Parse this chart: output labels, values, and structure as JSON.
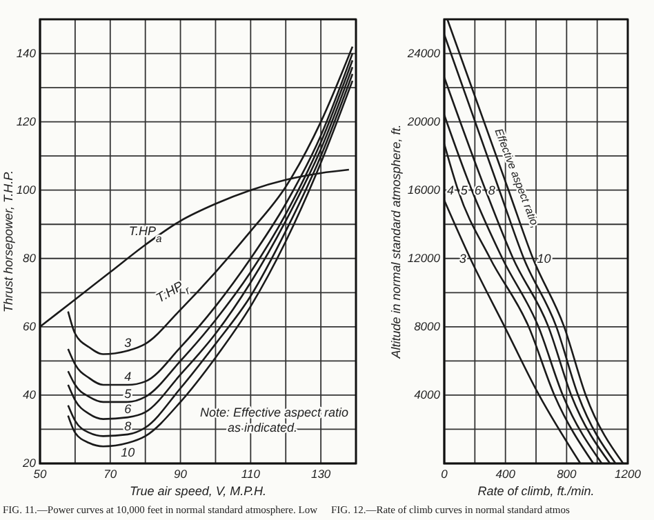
{
  "chart_data": [
    {
      "type": "line",
      "xlabel": "True air speed, V, M.P.H.",
      "ylabel": "Thrust horsepower, T.H.P.",
      "xlim": [
        50,
        140
      ],
      "ylim": [
        20,
        150
      ],
      "xticks": [
        50,
        {
          "value": 60,
          "label": null
        },
        70,
        {
          "value": 80,
          "label": null
        },
        90,
        {
          "value": 100,
          "label": null
        },
        110,
        {
          "value": 120,
          "label": null
        },
        130,
        {
          "value": 140,
          "label": null
        }
      ],
      "yticks": [
        20,
        {
          "value": 30,
          "label": null
        },
        40,
        {
          "value": 50,
          "label": null
        },
        60,
        {
          "value": 70,
          "label": null
        },
        80,
        {
          "value": 90,
          "label": null
        },
        100,
        {
          "value": 110,
          "label": null
        },
        120,
        {
          "value": 130,
          "label": null
        },
        140,
        {
          "value": 150,
          "label": null
        }
      ],
      "grid": true,
      "line_style": "solid",
      "series": [
        {
          "name": "T.HP$_{a}$",
          "color": "#1a1a1a",
          "x": [
            50,
            60,
            70,
            80,
            90,
            100,
            110,
            120,
            130,
            138
          ],
          "values": [
            60,
            68,
            76,
            84,
            91,
            96,
            100,
            103,
            105,
            106
          ]
        },
        {
          "name": "3",
          "color": "#1a1a1a",
          "x": [
            58,
            60,
            64,
            68,
            75,
            80,
            90,
            100,
            110,
            120,
            130,
            139
          ],
          "values": [
            64.5,
            58,
            54,
            52,
            53,
            55,
            65,
            76,
            88,
            101,
            120,
            142
          ]
        },
        {
          "name": "4",
          "color": "#1a1a1a",
          "x": [
            58,
            60,
            64,
            68,
            75,
            80,
            90,
            100,
            110,
            120,
            130,
            139
          ],
          "values": [
            53.5,
            49,
            45,
            43,
            43,
            44,
            54,
            66,
            80,
            96,
            116,
            140
          ]
        },
        {
          "name": "5",
          "color": "#1a1a1a",
          "x": [
            58,
            60,
            64,
            68,
            75,
            80,
            90,
            100,
            110,
            120,
            130,
            139
          ],
          "values": [
            47,
            43,
            39.5,
            38,
            38,
            39.5,
            50,
            62,
            76,
            93,
            114,
            138
          ]
        },
        {
          "name": "6",
          "color": "#1a1a1a",
          "x": [
            58,
            60,
            64,
            68,
            75,
            80,
            90,
            100,
            110,
            120,
            130,
            139
          ],
          "values": [
            43,
            38.5,
            34.5,
            33,
            33.5,
            35,
            46,
            58,
            73,
            91,
            112,
            136
          ]
        },
        {
          "name": "8",
          "color": "#1a1a1a",
          "x": [
            58,
            60,
            64,
            68,
            75,
            80,
            90,
            100,
            110,
            120,
            130,
            139
          ],
          "values": [
            37,
            32.5,
            29,
            28,
            28.5,
            30.5,
            42,
            55,
            69,
            88,
            110,
            134
          ]
        },
        {
          "name": "10",
          "color": "#1a1a1a",
          "x": [
            58,
            60,
            64,
            68,
            75,
            80,
            90,
            100,
            110,
            120,
            130,
            139
          ],
          "values": [
            34,
            29,
            26,
            25,
            26,
            28,
            38,
            51,
            66,
            85,
            108,
            132
          ]
        }
      ],
      "annotations": [
        "T.HP$_{r}$",
        "Note: Effective aspect ratio as indicated.",
        "FIG. 11.—Power curves at 10,000 feet in normal standard atmosphere. Low"
      ]
    },
    {
      "type": "line",
      "xlabel": "Rate of climb, ft./min.",
      "ylabel": "Altitude in normal standard atmosphere, ft.",
      "xlim": [
        0,
        1200
      ],
      "ylim": [
        0,
        26000
      ],
      "xticks": [
        0,
        {
          "value": 200,
          "label": null
        },
        400,
        {
          "value": 600,
          "label": null
        },
        800,
        {
          "value": 1000,
          "label": null
        },
        1200
      ],
      "yticks": [
        {
          "value": 0,
          "label": null
        },
        {
          "value": 2000,
          "label": null
        },
        4000,
        {
          "value": 6000,
          "label": null
        },
        8000,
        {
          "value": 10000,
          "label": null
        },
        12000,
        {
          "value": 14000,
          "label": null
        },
        16000,
        {
          "value": 18000,
          "label": null
        },
        20000,
        {
          "value": 22000,
          "label": null
        },
        24000,
        {
          "value": 26000,
          "label": null
        }
      ],
      "grid": true,
      "line_style": "solid",
      "series": [
        {
          "name": "3",
          "color": "#1a1a1a",
          "x": [
            0,
            170,
            395,
            620,
            890
          ],
          "values": [
            15400,
            12000,
            8000,
            4000,
            0
          ]
        },
        {
          "name": "4",
          "color": "#1a1a1a",
          "x": [
            0,
            90,
            300,
            552,
            720,
            975
          ],
          "values": [
            18700,
            16000,
            12000,
            8000,
            4000,
            0
          ]
        },
        {
          "name": "5",
          "color": "#1a1a1a",
          "x": [
            0,
            180,
            380,
            616,
            775,
            1030
          ],
          "values": [
            20400,
            16000,
            12000,
            8000,
            4000,
            0
          ]
        },
        {
          "name": "6",
          "color": "#1a1a1a",
          "x": [
            0,
            270,
            450,
            681,
            830,
            1084
          ],
          "values": [
            22600,
            16000,
            12000,
            8000,
            4000,
            0
          ]
        },
        {
          "name": "8",
          "color": "#1a1a1a",
          "x": [
            0,
            360,
            520,
            733,
            875,
            1120
          ],
          "values": [
            25100,
            16000,
            12000,
            8000,
            4000,
            0
          ]
        },
        {
          "name": "10",
          "color": "#1a1a1a",
          "x": [
            20,
            420,
            580,
            784,
            925,
            1170
          ],
          "values": [
            26000,
            16000,
            12000,
            8000,
            4000,
            0
          ]
        }
      ],
      "annotations": [
        "Effective aspect ratio,",
        "FIG. 12.—Rate of climb curves in normal standard atmos"
      ]
    }
  ]
}
